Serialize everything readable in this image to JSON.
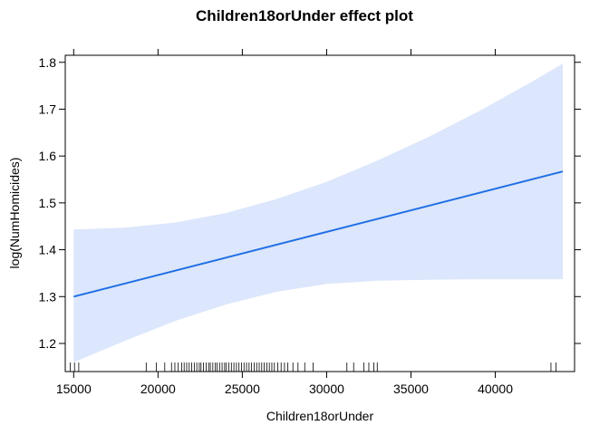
{
  "chart_data": {
    "type": "line",
    "title": "Children18orUnder effect plot",
    "xlabel": "Children18orUnder",
    "ylabel": "log(NumHomicides)",
    "xlim": [
      14500,
      44700
    ],
    "ylim": [
      1.14,
      1.815
    ],
    "x_ticks": [
      15000,
      20000,
      25000,
      30000,
      35000,
      40000
    ],
    "y_ticks": [
      1.2,
      1.3,
      1.4,
      1.5,
      1.6,
      1.7,
      1.8
    ],
    "series": [
      {
        "x": [
          15000,
          44000
        ],
        "values": [
          1.3,
          1.567
        ]
      }
    ],
    "confidence_band": {
      "x": [
        15000,
        18000,
        21000,
        24000,
        27000,
        30000,
        33000,
        36000,
        39000,
        42000,
        44000
      ],
      "upper": [
        1.443,
        1.447,
        1.458,
        1.478,
        1.508,
        1.545,
        1.59,
        1.64,
        1.695,
        1.755,
        1.797
      ],
      "lower": [
        1.16,
        1.205,
        1.248,
        1.283,
        1.31,
        1.327,
        1.334,
        1.336,
        1.337,
        1.337,
        1.337
      ]
    },
    "rug": [
      14800,
      15050,
      15300,
      19300,
      19900,
      20400,
      20800,
      21000,
      21200,
      21400,
      21550,
      21700,
      21850,
      22000,
      22150,
      22300,
      22450,
      22550,
      22700,
      22850,
      23000,
      23100,
      23250,
      23400,
      23500,
      23650,
      23800,
      23950,
      24050,
      24200,
      24350,
      24500,
      24650,
      24800,
      24950,
      25100,
      25250,
      25400,
      25550,
      25700,
      25850,
      26000,
      26150,
      26300,
      26450,
      26600,
      26750,
      26900,
      27100,
      27300,
      27500,
      27700,
      28000,
      28300,
      28700,
      29200,
      31200,
      31600,
      32200,
      32500,
      32800,
      33000,
      43300,
      43600
    ],
    "colors": {
      "line": "#1f6fe5",
      "band": "#dce6fc"
    },
    "grid": false,
    "legend": "none"
  }
}
